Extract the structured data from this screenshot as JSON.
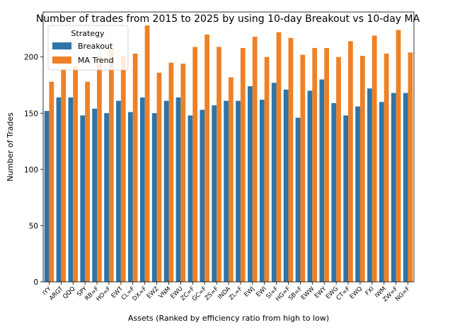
{
  "chart_data": {
    "type": "bar",
    "title": "Number of trades from 2015 to 2025 by using 10-day Breakout vs 10-day MA",
    "xlabel": "Assets (Ranked by efficiency ratio from high to low)",
    "ylabel": "Number of Trades",
    "ylim": [
      0,
      240
    ],
    "yticks": [
      0,
      50,
      100,
      150,
      200
    ],
    "grid": false,
    "legend": {
      "title": "Strategy",
      "placement": "top-left"
    },
    "categories": [
      "IYY",
      "ARGT",
      "QQQ",
      "SPY",
      "RB=F",
      "HO=F",
      "EWT",
      "CL=F",
      "DX=F",
      "EWZ",
      "VNM",
      "EWU",
      "ZC=F",
      "GC=F",
      "ZS=F",
      "INDA",
      "ZL=F",
      "EWJ",
      "EWI",
      "SI=F",
      "HG=F",
      "SB=F",
      "EWW",
      "EWY",
      "EWG",
      "CT=F",
      "EWQ",
      "FXI",
      "IWM",
      "ZW=F",
      "NG=F"
    ],
    "series": [
      {
        "name": "Breakout",
        "color": "#2e74a8",
        "values": [
          152,
          164,
          164,
          148,
          154,
          150,
          161,
          151,
          164,
          150,
          161,
          164,
          148,
          153,
          157,
          161,
          161,
          174,
          162,
          177,
          171,
          146,
          170,
          180,
          159,
          148,
          156,
          172,
          160,
          168,
          168
        ]
      },
      {
        "name": "MA Trend",
        "color": "#ee8126",
        "values": [
          178,
          190,
          192,
          178,
          201,
          207,
          201,
          203,
          228,
          186,
          195,
          194,
          209,
          220,
          209,
          182,
          208,
          218,
          200,
          222,
          217,
          202,
          208,
          208,
          200,
          214,
          201,
          219,
          203,
          224,
          204
        ]
      }
    ]
  }
}
